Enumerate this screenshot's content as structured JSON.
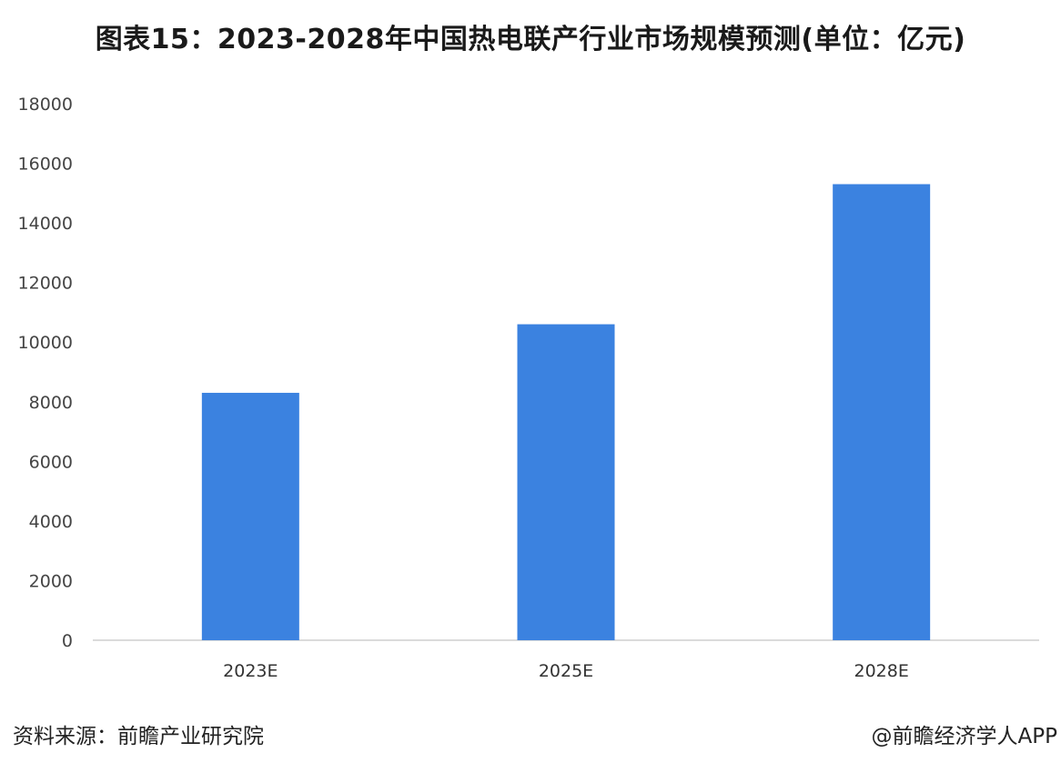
{
  "chart_data": {
    "type": "bar",
    "title": "图表15：2023-2028年中国热电联产行业市场规模预测(单位：亿元)",
    "categories": [
      "2023E",
      "2025E",
      "2028E"
    ],
    "values": [
      8300,
      10600,
      15300
    ],
    "ylim": [
      0,
      18000
    ],
    "yticks": [
      0,
      2000,
      4000,
      6000,
      8000,
      10000,
      12000,
      14000,
      16000,
      18000
    ],
    "xlabel": "",
    "ylabel": "",
    "grid": false,
    "bar_color": "#3b82e0",
    "axis_color": "#cfcfcf"
  },
  "footer": {
    "source": "资料来源：前瞻产业研究院",
    "credit": "@前瞻经济学人APP"
  }
}
